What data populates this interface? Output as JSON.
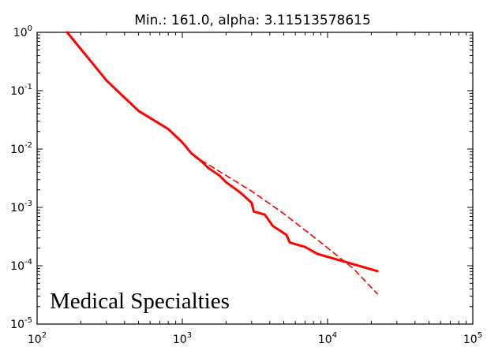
{
  "chart_data": {
    "type": "line",
    "title": "Min.: 161.0, alpha: 3.11513578615",
    "annotation": "Medical Specialties",
    "xscale": "log",
    "yscale": "log",
    "xlim": [
      100,
      100000
    ],
    "ylim": [
      1e-05,
      1
    ],
    "grid": false,
    "x_ticks": [
      {
        "value": 100,
        "base": "10",
        "exp": "2"
      },
      {
        "value": 1000,
        "base": "10",
        "exp": "3"
      },
      {
        "value": 10000,
        "base": "10",
        "exp": "4"
      },
      {
        "value": 100000,
        "base": "10",
        "exp": "5"
      }
    ],
    "y_ticks": [
      {
        "value": 1,
        "base": "10",
        "exp": "0"
      },
      {
        "value": 0.1,
        "base": "10",
        "exp": "-1"
      },
      {
        "value": 0.01,
        "base": "10",
        "exp": "-2"
      },
      {
        "value": 0.001,
        "base": "10",
        "exp": "-3"
      },
      {
        "value": 0.0001,
        "base": "10",
        "exp": "-4"
      },
      {
        "value": 1e-05,
        "base": "10",
        "exp": "-5"
      }
    ],
    "series": [
      {
        "style": "solid",
        "color": "#ff0000",
        "points": [
          [
            161,
            1.0
          ],
          [
            300,
            0.15
          ],
          [
            500,
            0.045
          ],
          [
            800,
            0.022
          ],
          [
            1000,
            0.013
          ],
          [
            1150,
            0.0085
          ],
          [
            1350,
            0.0062
          ],
          [
            1500,
            0.0048
          ],
          [
            1800,
            0.0035
          ],
          [
            2000,
            0.0027
          ],
          [
            2500,
            0.0018
          ],
          [
            3000,
            0.0012
          ],
          [
            3100,
            0.00085
          ],
          [
            3700,
            0.00075
          ],
          [
            4200,
            0.00048
          ],
          [
            5200,
            0.00034
          ],
          [
            5500,
            0.00025
          ],
          [
            7000,
            0.00021
          ],
          [
            8500,
            0.00016
          ],
          [
            22000,
            8.1e-05
          ]
        ]
      },
      {
        "style": "dashed",
        "color": "#ff0000",
        "points": [
          [
            1350,
            0.0064
          ],
          [
            3000,
            0.0019
          ],
          [
            5000,
            0.00078
          ],
          [
            9000,
            0.00025
          ],
          [
            15000,
            9e-05
          ],
          [
            22000,
            3.3e-05
          ]
        ]
      }
    ]
  }
}
